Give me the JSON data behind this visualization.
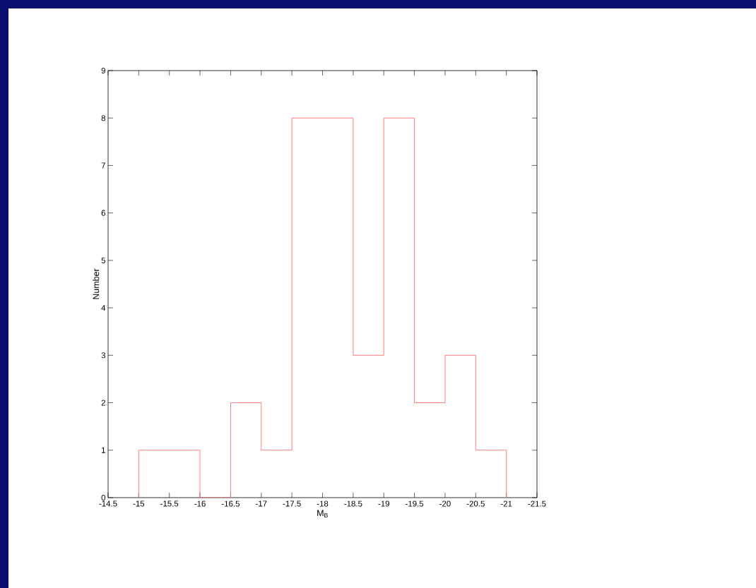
{
  "chart_data": {
    "type": "histogram",
    "xlabel": "M$_{B}$",
    "ylabel": "Number",
    "bins": [
      -15,
      -15.5,
      -16,
      -16.5,
      -17,
      -17.5,
      -18,
      -18.5,
      -19,
      -19.5,
      -20,
      -20.5,
      -21
    ],
    "values": [
      1,
      1,
      0,
      2,
      1,
      8,
      8,
      3,
      8,
      2,
      3,
      1
    ],
    "color": "#ff6f6f",
    "xlim": [
      -14.5,
      -21.5
    ],
    "ylim": [
      0,
      9
    ],
    "xticks": [
      -14.5,
      -15,
      -15.5,
      -16,
      -16.5,
      -17,
      -17.5,
      -18,
      -18.5,
      -19,
      -19.5,
      -20,
      -20.5,
      -21,
      -21.5
    ],
    "yticks": [
      0,
      1,
      2,
      3,
      4,
      5,
      6,
      7,
      8,
      9
    ],
    "grid": false
  }
}
